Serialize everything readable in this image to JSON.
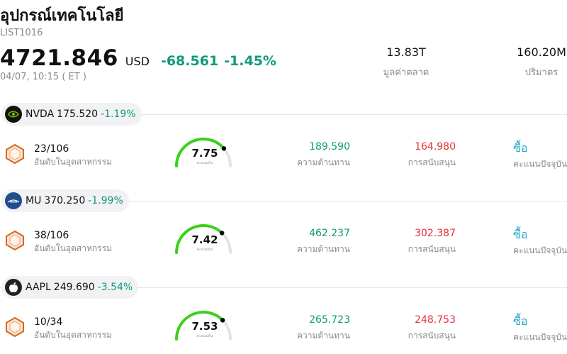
{
  "header": {
    "title": "อุปกรณ์เทคโนโลยี",
    "code": "LIST1016",
    "price": "4721.846",
    "currency": "USD",
    "change": "-68.561",
    "change_pct": "-1.45%",
    "time": "04/07, 10:15  ( ET )"
  },
  "stats": [
    {
      "value": "13.83T",
      "label": "มูลค่าตลาด"
    },
    {
      "value": "160.20M",
      "label": "ปริมาตร"
    }
  ],
  "labels": {
    "rank": "อันดับในอุตสาหกรรม",
    "resistance": "ความต้านทาน",
    "support": "การสนับสนุน",
    "rating": "คะแนนปัจจุบัน",
    "score": "คะแนนหุ้น"
  },
  "colors": {
    "up_green": "#0e9a7a",
    "down_red": "#e5323a",
    "gauge_green": "#3ad11a",
    "rating_blue": "#26a6c9"
  },
  "stocks": [
    {
      "symbol": "NVDA",
      "logo": "nvidia-logo-icon",
      "price": "175.520",
      "change": "-1.19%",
      "rank": "23/106",
      "score": "7.75",
      "score_fraction": 0.775,
      "resistance": "189.590",
      "support": "164.980",
      "rating": "ซื้อ"
    },
    {
      "symbol": "MU",
      "logo": "micron-logo-icon",
      "price": "370.250",
      "change": "-1.99%",
      "rank": "38/106",
      "score": "7.42",
      "score_fraction": 0.742,
      "resistance": "462.237",
      "support": "302.387",
      "rating": "ซื้อ"
    },
    {
      "symbol": "AAPL",
      "logo": "apple-logo-icon",
      "price": "249.690",
      "change": "-3.54%",
      "rank": "10/34",
      "score": "7.53",
      "score_fraction": 0.753,
      "resistance": "265.723",
      "support": "248.753",
      "rating": "ซื้อ"
    }
  ]
}
